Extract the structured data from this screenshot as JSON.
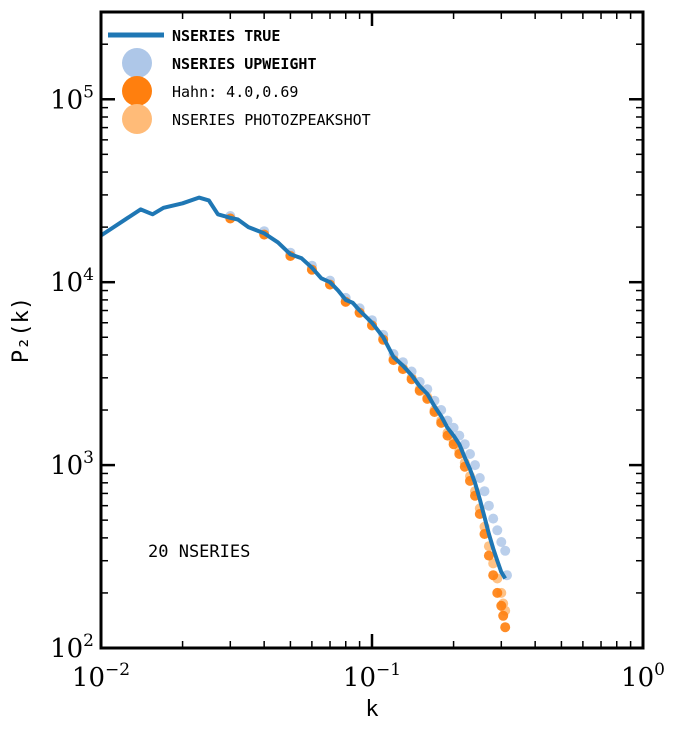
{
  "chart_data": {
    "type": "line",
    "xscale": "log",
    "yscale": "log",
    "xlim": [
      0.01,
      1.0
    ],
    "ylim": [
      100,
      300000
    ],
    "xlabel": "k",
    "ylabel": "P₂(k)",
    "annotation": "20 NSERIES",
    "legend_position": "upper-left",
    "x_ticks": [
      {
        "value": 0.01,
        "base": "10",
        "exp": "−2"
      },
      {
        "value": 0.1,
        "base": "10",
        "exp": "−1"
      },
      {
        "value": 1.0,
        "base": "10",
        "exp": "0"
      }
    ],
    "y_ticks": [
      {
        "value": 100,
        "base": "10",
        "exp": "2"
      },
      {
        "value": 1000,
        "base": "10",
        "exp": "3"
      },
      {
        "value": 10000,
        "base": "10",
        "exp": "4"
      },
      {
        "value": 100000,
        "base": "10",
        "exp": "5"
      }
    ],
    "series": [
      {
        "name": "NSERIES TRUE",
        "style": "line",
        "color": "#1f77b4",
        "x": [
          0.01,
          0.014,
          0.0155,
          0.017,
          0.02,
          0.023,
          0.025,
          0.027,
          0.03,
          0.032,
          0.035,
          0.04,
          0.045,
          0.05,
          0.055,
          0.06,
          0.065,
          0.07,
          0.075,
          0.08,
          0.085,
          0.09,
          0.1,
          0.11,
          0.12,
          0.13,
          0.14,
          0.15,
          0.16,
          0.17,
          0.18,
          0.19,
          0.2,
          0.21,
          0.22,
          0.23,
          0.24,
          0.25,
          0.26,
          0.27,
          0.28,
          0.29,
          0.3,
          0.31
        ],
        "y": [
          18000,
          25000,
          23500,
          25500,
          27000,
          29000,
          28000,
          23500,
          22500,
          22000,
          20000,
          18500,
          16500,
          14200,
          13500,
          12000,
          10500,
          10000,
          9000,
          8000,
          7700,
          7000,
          6000,
          5000,
          3900,
          3500,
          3100,
          2700,
          2450,
          2100,
          1850,
          1600,
          1450,
          1300,
          1100,
          950,
          800,
          650,
          520,
          420,
          350,
          300,
          260,
          240
        ]
      },
      {
        "name": "NSERIES UPWEIGHT",
        "style": "points",
        "color": "#aec7e8",
        "x": [
          0.03,
          0.04,
          0.05,
          0.06,
          0.07,
          0.08,
          0.09,
          0.1,
          0.11,
          0.12,
          0.13,
          0.14,
          0.15,
          0.16,
          0.17,
          0.18,
          0.19,
          0.2,
          0.21,
          0.22,
          0.23,
          0.24,
          0.25,
          0.26,
          0.27,
          0.28,
          0.29,
          0.3,
          0.31,
          0.315
        ],
        "y": [
          23000,
          19000,
          14500,
          12300,
          10200,
          8200,
          7200,
          6200,
          5150,
          4050,
          3650,
          3250,
          2850,
          2600,
          2250,
          2000,
          1750,
          1600,
          1450,
          1300,
          1150,
          1000,
          850,
          720,
          600,
          510,
          440,
          380,
          340,
          250
        ]
      },
      {
        "name": "Hahn:  4.0,0.69",
        "style": "points",
        "color": "#ff7f0e",
        "x": [
          0.03,
          0.04,
          0.05,
          0.06,
          0.07,
          0.08,
          0.09,
          0.1,
          0.11,
          0.12,
          0.13,
          0.14,
          0.15,
          0.16,
          0.17,
          0.18,
          0.19,
          0.2,
          0.21,
          0.22,
          0.23,
          0.24,
          0.25,
          0.26,
          0.27,
          0.28,
          0.29,
          0.3,
          0.305,
          0.31
        ],
        "y": [
          22300,
          18200,
          13900,
          11700,
          9700,
          7800,
          6800,
          5800,
          4850,
          3750,
          3350,
          2950,
          2550,
          2300,
          1950,
          1700,
          1450,
          1300,
          1150,
          980,
          820,
          680,
          540,
          420,
          320,
          250,
          200,
          170,
          150,
          130
        ]
      },
      {
        "name": "NSERIES PHOTOZPEAKSHOT",
        "style": "points",
        "color": "#ffbb78",
        "x": [
          0.03,
          0.04,
          0.05,
          0.06,
          0.07,
          0.08,
          0.09,
          0.1,
          0.11,
          0.12,
          0.13,
          0.14,
          0.15,
          0.16,
          0.17,
          0.18,
          0.19,
          0.2,
          0.21,
          0.22,
          0.23,
          0.24,
          0.25,
          0.26,
          0.27,
          0.28,
          0.29,
          0.3,
          0.305,
          0.31
        ],
        "y": [
          22400,
          18300,
          14000,
          11800,
          9750,
          7850,
          6850,
          5850,
          4900,
          3800,
          3400,
          3000,
          2600,
          2350,
          2000,
          1750,
          1500,
          1350,
          1200,
          1030,
          870,
          720,
          580,
          460,
          360,
          290,
          240,
          200,
          175,
          160
        ]
      }
    ]
  }
}
